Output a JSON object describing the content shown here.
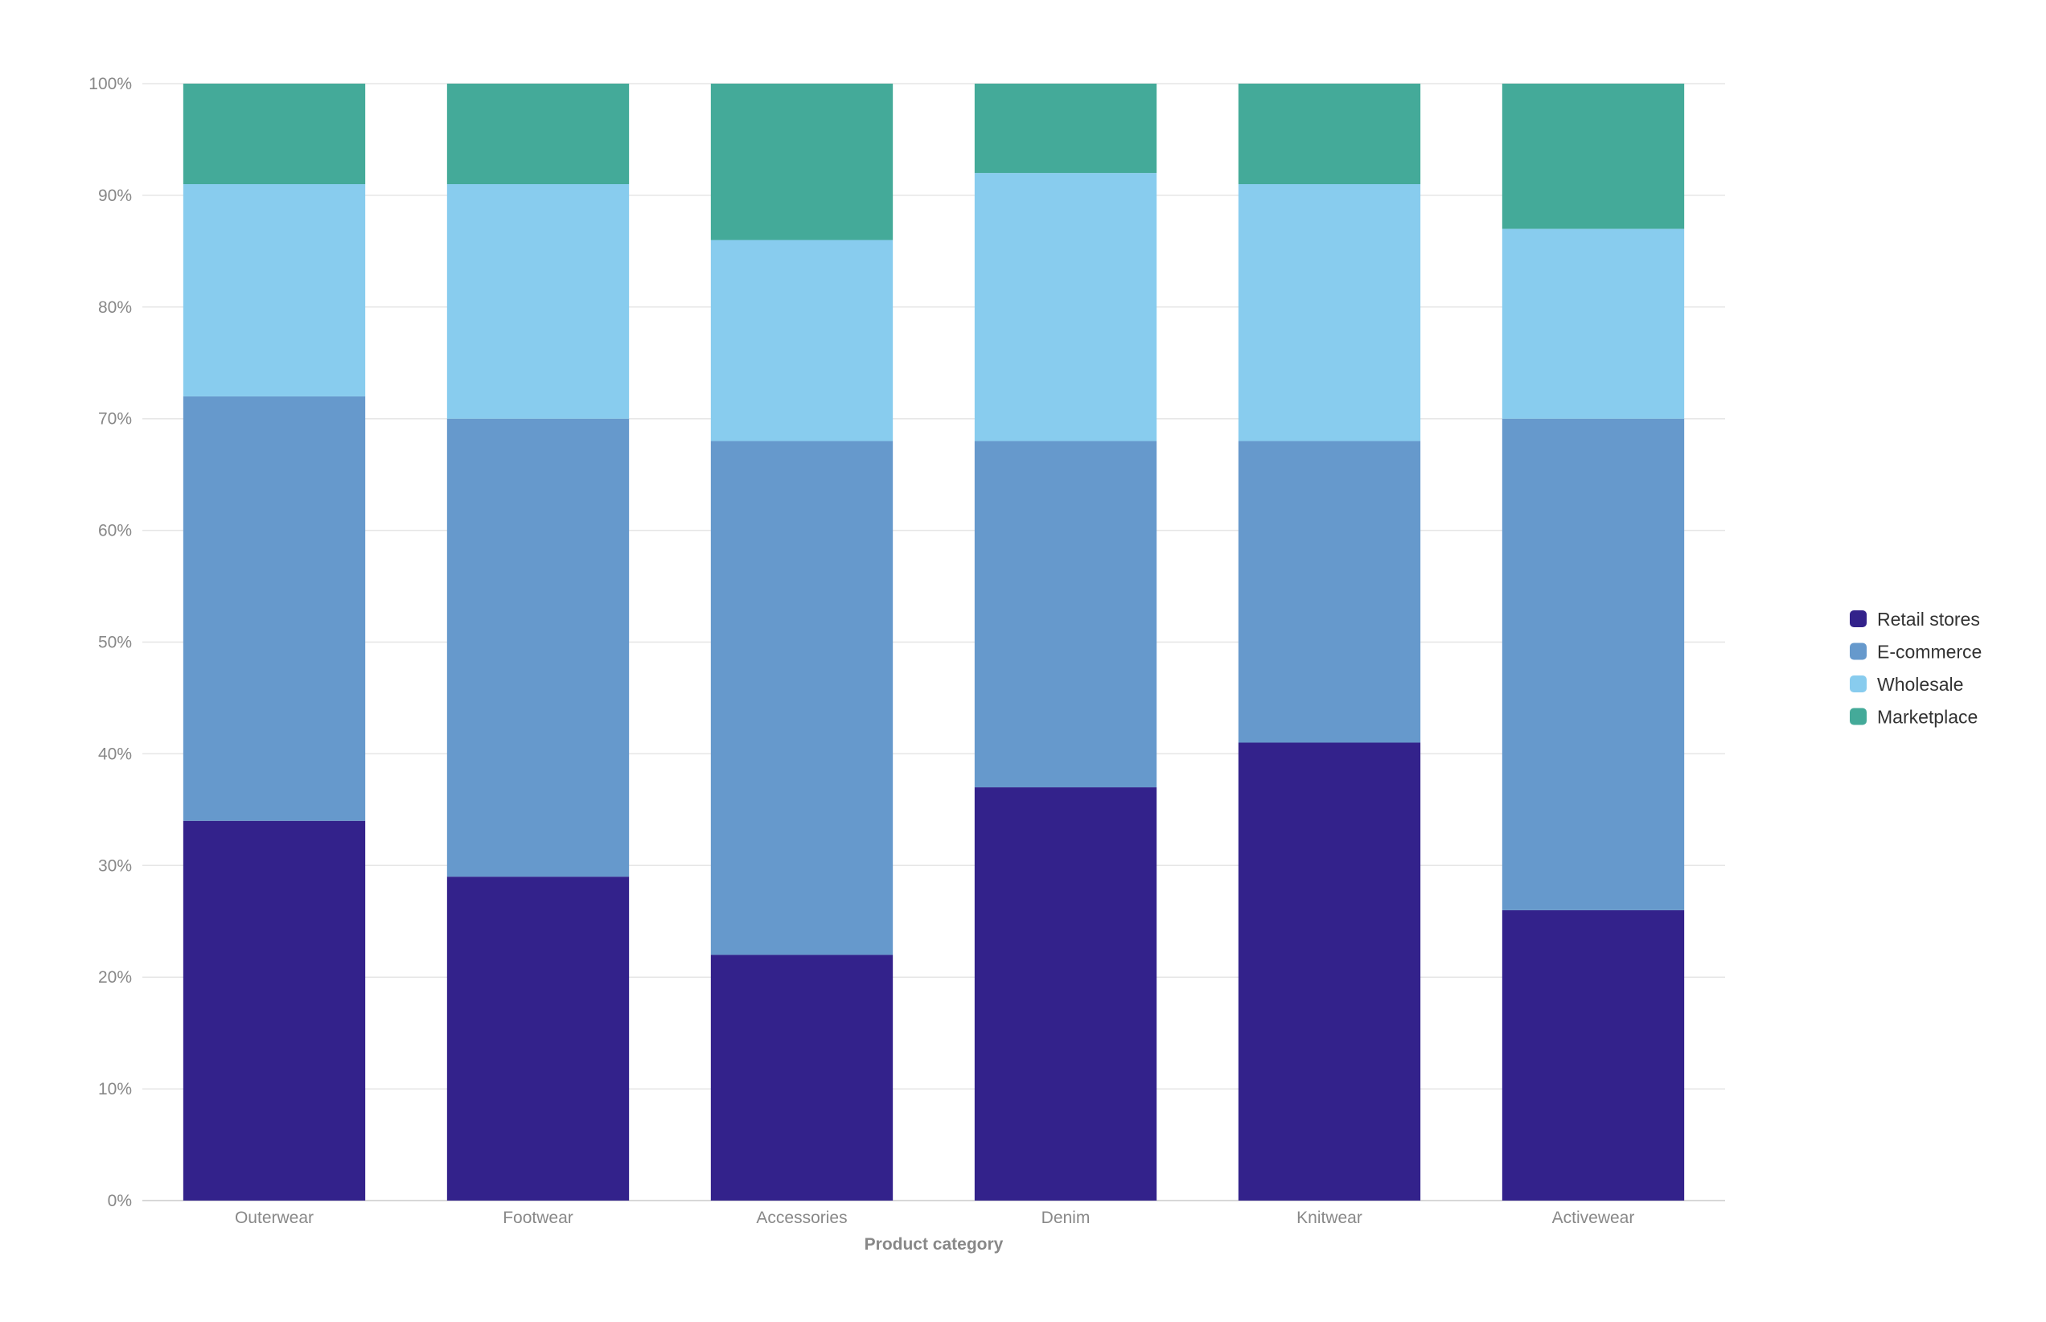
{
  "chart_data": {
    "type": "bar",
    "stacked": true,
    "percent": true,
    "categories": [
      "Outerwear",
      "Footwear",
      "Accessories",
      "Denim",
      "Knitwear",
      "Activewear"
    ],
    "series": [
      {
        "name": "Retail stores",
        "color": "#33228b",
        "values": [
          34,
          29,
          22,
          37,
          41,
          26
        ]
      },
      {
        "name": "E-commerce",
        "color": "#6699cc",
        "values": [
          38,
          41,
          46,
          31,
          27,
          44
        ]
      },
      {
        "name": "Wholesale",
        "color": "#88ccee",
        "values": [
          19,
          21,
          18,
          24,
          23,
          17
        ]
      },
      {
        "name": "Marketplace",
        "color": "#44aa99",
        "values": [
          9,
          9,
          14,
          8,
          9,
          13
        ]
      }
    ],
    "xlabel": "Product category",
    "ylabel": "",
    "ylim": [
      0,
      100
    ],
    "yticks": [
      "0%",
      "10%",
      "20%",
      "30%",
      "40%",
      "50%",
      "60%",
      "70%",
      "80%",
      "90%",
      "100%"
    ],
    "grid": true,
    "legend_position": "right"
  }
}
